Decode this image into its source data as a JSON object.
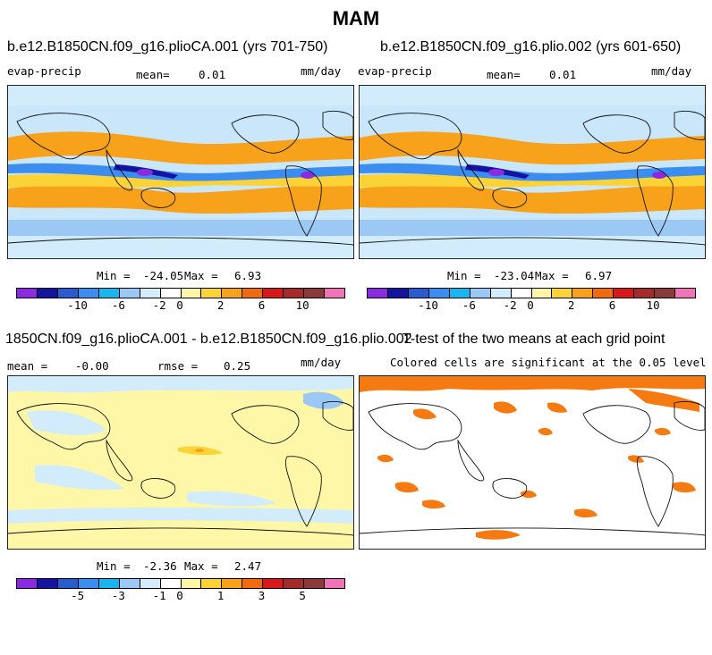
{
  "title": "MAM",
  "colors": {
    "levels": [
      "#8a2be2",
      "#1414a0",
      "#2a5ccf",
      "#3b8df0",
      "#19b5f0",
      "#9cc8f5",
      "#d2ecfb",
      "#ffffff",
      "#fff7a8",
      "#fcd336",
      "#f7a21a",
      "#f26a0e",
      "#d7191c",
      "#a52a2a",
      "#8b3a3a",
      "#f073b8"
    ],
    "ocean_base": "#c9e6fb",
    "land": "#ffffff",
    "significant": "#f57a12"
  },
  "panels": [
    {
      "title": "b.e12.B1850CN.f09_g16.plioCA.001 (yrs 701-750)",
      "left_label": "evap-precip",
      "mean_label": "mean=",
      "mean_value": "0.01",
      "units": "mm/day",
      "min_label": "Min =",
      "min_value": "-24.05",
      "max_label": "Max =",
      "max_value": "6.93",
      "ticks": [
        "-10",
        "-6",
        "-2",
        "0",
        "2",
        "6",
        "10"
      ]
    },
    {
      "title": "b.e12.B1850CN.f09_g16.plio.002 (yrs 601-650)",
      "left_label": "evap-precip",
      "mean_label": "mean=",
      "mean_value": "0.01",
      "units": "mm/day",
      "min_label": "Min =",
      "min_value": "-23.04",
      "max_label": "Max =",
      "max_value": "6.97",
      "ticks": [
        "-10",
        "-6",
        "-2",
        "0",
        "2",
        "6",
        "10"
      ]
    },
    {
      "title": "1850CN.f09_g16.plioCA.001 - b.e12.B1850CN.f09_g16.plio.002",
      "mean_label": "mean =",
      "mean_value": "-0.00",
      "rmse_label": "rmse =",
      "rmse_value": "0.25",
      "units": "mm/day",
      "min_label": "Min =",
      "min_value": "-2.36",
      "max_label": "Max =",
      "max_value": "2.47",
      "ticks": [
        "-5",
        "-3",
        "-1",
        "0",
        "1",
        "3",
        "5"
      ]
    },
    {
      "title": "T-test of the two means at each grid point",
      "subtitle": "Colored cells are significant at the 0.05 level"
    }
  ]
}
